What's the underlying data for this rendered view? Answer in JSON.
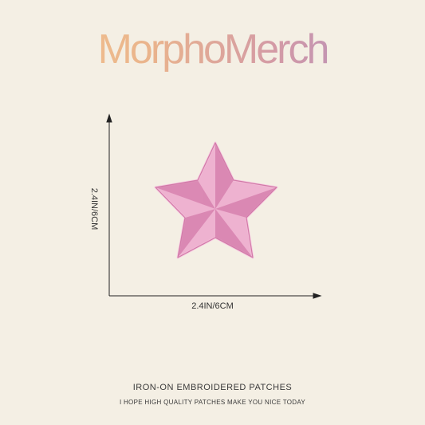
{
  "brand": {
    "name": "MorphoMerch"
  },
  "dimensions": {
    "height_label": "2.4IN/6CM",
    "width_label": "2.4IN/6CM"
  },
  "product": {
    "icon": "star-patch",
    "color": "#e9a2c6"
  },
  "footer": {
    "title": "IRON-ON EMBROIDERED PATCHES",
    "subtitle": "I HOPE HIGH QUALITY PATCHES MAKE YOU NICE TODAY"
  }
}
